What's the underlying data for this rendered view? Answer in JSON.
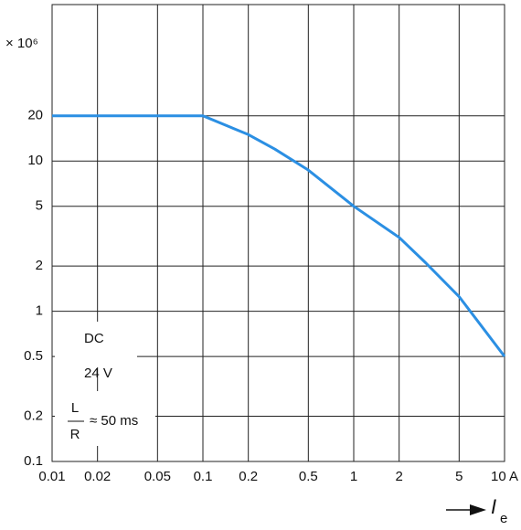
{
  "chart_data": {
    "type": "line",
    "y_unit": "× 10⁶",
    "x_label": "I",
    "x_label_sub": "e",
    "x": [
      0.01,
      0.1,
      0.2,
      0.3,
      0.5,
      1,
      2,
      3,
      5,
      10
    ],
    "series": [
      {
        "color": "#2b8fe3",
        "values": [
          20,
          20,
          15,
          12,
          8.7,
          5,
          3.1,
          2.1,
          1.25,
          0.5
        ]
      }
    ],
    "xlog": true,
    "ylog": true,
    "grid": true,
    "xlim": [
      0.01,
      10
    ],
    "ylim": [
      0.1,
      110
    ],
    "xticks": [
      0.01,
      0.02,
      0.05,
      0.1,
      0.2,
      0.5,
      1,
      2,
      5,
      {
        "value": 10,
        "label": "10 A"
      }
    ],
    "yticks": [
      0.1,
      0.2,
      0.5,
      1,
      2,
      5,
      10,
      20
    ],
    "annotations": {
      "current_type": "DC",
      "voltage": "24 V",
      "ratio_num": "L",
      "ratio_den": "R",
      "ratio_value": "≈ 50 ms"
    }
  }
}
